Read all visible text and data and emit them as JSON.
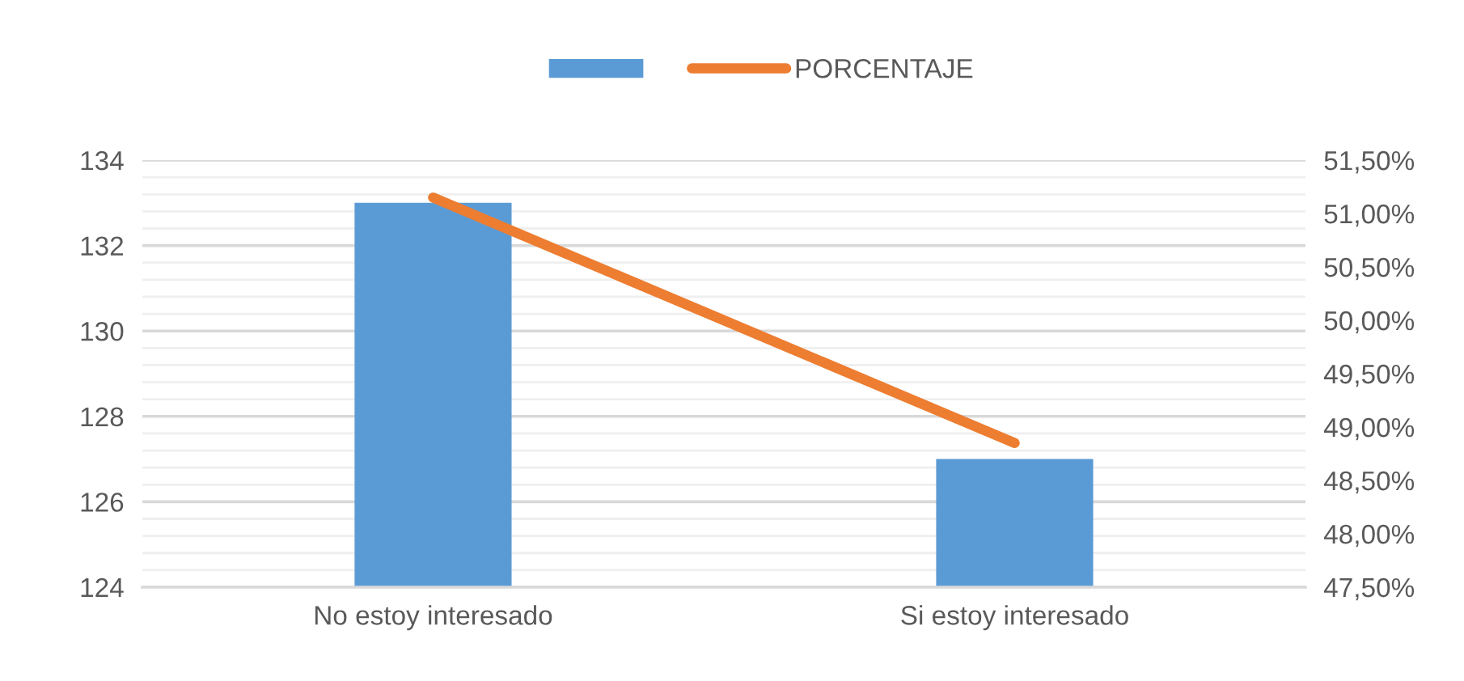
{
  "chart_data": {
    "type": "bar",
    "categories": [
      "No estoy interesado",
      "Si estoy interesado"
    ],
    "series": [
      {
        "color": "#5b9bd5",
        "values": [
          133,
          127
        ]
      },
      {
        "type": "line",
        "name": "PORCENTAJE",
        "color": "#ed7d31",
        "axis": "y2",
        "values": [
          51.15,
          48.85
        ]
      }
    ],
    "ylim": [
      124,
      134
    ],
    "yticks": [
      124,
      126,
      128,
      130,
      132,
      134
    ],
    "y2lim": [
      47.5,
      51.5
    ],
    "y2ticks": [
      {
        "value": 47.5,
        "label": "47,50%"
      },
      {
        "value": 48.0,
        "label": "48,00%"
      },
      {
        "value": 48.5,
        "label": "48,50%"
      },
      {
        "value": 49.0,
        "label": "49,00%"
      },
      {
        "value": 49.5,
        "label": "49,50%"
      },
      {
        "value": 50.0,
        "label": "50,00%"
      },
      {
        "value": 50.5,
        "label": "50,50%"
      },
      {
        "value": 51.0,
        "label": "51,00%"
      },
      {
        "value": 51.5,
        "label": "51,50%"
      }
    ],
    "grid": "y",
    "legend": "top"
  }
}
